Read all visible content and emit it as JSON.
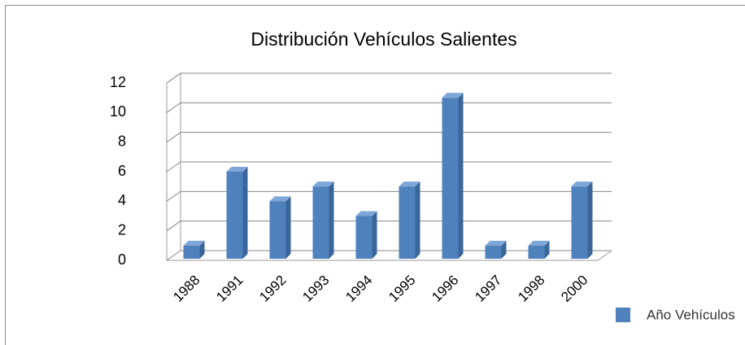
{
  "chart_data": {
    "type": "bar",
    "title": "Distribución Vehículos Salientes",
    "categories": [
      "1988",
      "1991",
      "1992",
      "1993",
      "1994",
      "1995",
      "1996",
      "1997",
      "1998",
      "2000"
    ],
    "series": [
      {
        "name": "Año Vehículos",
        "color": "#4f81bd",
        "values": [
          1,
          6,
          4,
          5,
          3,
          5,
          11,
          1,
          1,
          5
        ]
      }
    ],
    "ylim": [
      0,
      12
    ],
    "yticks": [
      0,
      2,
      4,
      6,
      8,
      10,
      12
    ],
    "grid": true,
    "legend": "right"
  }
}
